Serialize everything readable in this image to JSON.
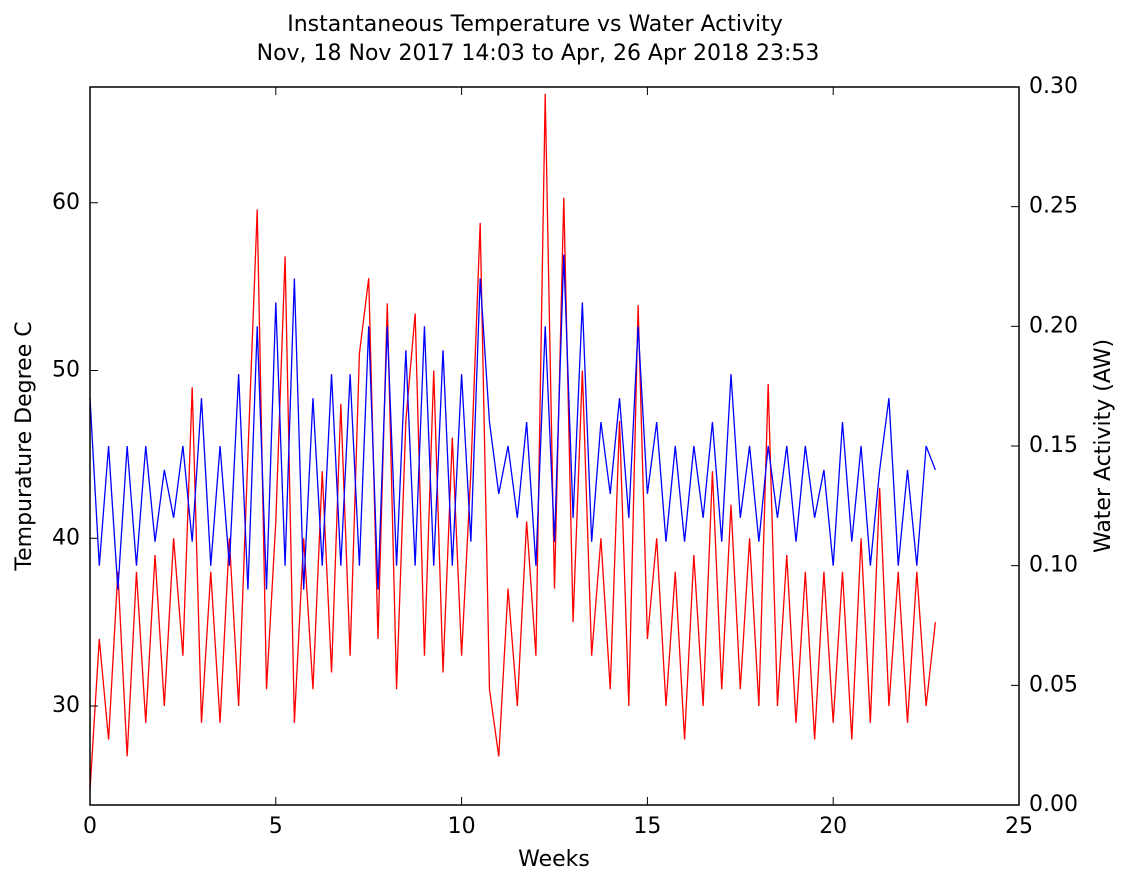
{
  "chart_data": {
    "type": "line",
    "title": "Instantaneous Temperature vs Water Activity",
    "subtitle": "Nov, 18 Nov 2017 14:03 to Apr, 26 Apr 2018 23:53",
    "x_label": "Weeks",
    "y_label": "Tempurature Degree C",
    "y_label_color": "#ff0000",
    "y2_label": "Water Activity (AW)",
    "y2_label_color": "#0000ff",
    "xlim": [
      0,
      25
    ],
    "xticks": [
      0,
      5,
      10,
      15,
      20,
      25
    ],
    "ylim": [
      24.1,
      66.9
    ],
    "yticks": [
      30,
      40,
      50,
      60
    ],
    "y2lim": [
      0,
      0.3
    ],
    "y2ticks": [
      {
        "value": 0,
        "label": "0.00"
      },
      {
        "value": 0.05,
        "label": "0.05"
      },
      {
        "value": 0.1,
        "label": "0.10"
      },
      {
        "value": 0.15,
        "label": "0.15"
      },
      {
        "value": 0.2,
        "label": "0.20"
      },
      {
        "value": 0.25,
        "label": "0.25"
      },
      {
        "value": 0.3,
        "label": "0.30"
      }
    ],
    "x": [
      0,
      0.25,
      0.5,
      0.75,
      1,
      1.25,
      1.5,
      1.75,
      2,
      2.25,
      2.5,
      2.75,
      3,
      3.25,
      3.5,
      3.75,
      4,
      4.25,
      4.5,
      4.75,
      5,
      5.25,
      5.5,
      5.75,
      6,
      6.25,
      6.5,
      6.75,
      7,
      7.25,
      7.5,
      7.75,
      8,
      8.25,
      8.5,
      8.75,
      9,
      9.25,
      9.5,
      9.75,
      10,
      10.25,
      10.5,
      10.75,
      11,
      11.25,
      11.5,
      11.75,
      12,
      12.25,
      12.5,
      12.75,
      13,
      13.25,
      13.5,
      13.75,
      14,
      14.25,
      14.5,
      14.75,
      15,
      15.25,
      15.5,
      15.75,
      16,
      16.25,
      16.5,
      16.75,
      17,
      17.25,
      17.5,
      17.75,
      18,
      18.25,
      18.5,
      18.75,
      19,
      19.25,
      19.5,
      19.75,
      20,
      20.25,
      20.5,
      20.75,
      21,
      21.25,
      21.5,
      21.75,
      22,
      22.25,
      22.5,
      22.75
    ],
    "series": [
      {
        "color": "#ff0000",
        "values": [
          25,
          34,
          28,
          38,
          27,
          38,
          29,
          39,
          30,
          40,
          33,
          49,
          29,
          38,
          29,
          40,
          30,
          45,
          59.6,
          31,
          41,
          56.8,
          29,
          40,
          31,
          44,
          32,
          48,
          33,
          51,
          55.5,
          34,
          54,
          31,
          47,
          53.4,
          33,
          50,
          32,
          46,
          33,
          44,
          58.8,
          31,
          27,
          37,
          30,
          41,
          33,
          66.5,
          37,
          60.3,
          35,
          50,
          33,
          40,
          31,
          47,
          30,
          53.9,
          34,
          40,
          30,
          38,
          28,
          39,
          30,
          44,
          31,
          42,
          31,
          40,
          30,
          49.2,
          30,
          39,
          29,
          38,
          28,
          38,
          29,
          38,
          28,
          40,
          29,
          43,
          30,
          38,
          29,
          38,
          30,
          35
        ]
      },
      {
        "color": "#0000ff",
        "axis": "y2",
        "values": [
          0.17,
          0.1,
          0.15,
          0.09,
          0.15,
          0.1,
          0.15,
          0.11,
          0.14,
          0.12,
          0.15,
          0.11,
          0.17,
          0.1,
          0.15,
          0.1,
          0.18,
          0.09,
          0.2,
          0.09,
          0.21,
          0.1,
          0.22,
          0.09,
          0.17,
          0.1,
          0.18,
          0.1,
          0.18,
          0.1,
          0.2,
          0.09,
          0.2,
          0.1,
          0.19,
          0.1,
          0.2,
          0.1,
          0.19,
          0.1,
          0.18,
          0.11,
          0.22,
          0.16,
          0.13,
          0.15,
          0.12,
          0.16,
          0.1,
          0.2,
          0.11,
          0.23,
          0.12,
          0.21,
          0.11,
          0.16,
          0.13,
          0.17,
          0.12,
          0.2,
          0.13,
          0.16,
          0.11,
          0.15,
          0.11,
          0.15,
          0.12,
          0.16,
          0.11,
          0.18,
          0.12,
          0.15,
          0.11,
          0.15,
          0.12,
          0.15,
          0.11,
          0.15,
          0.12,
          0.14,
          0.1,
          0.16,
          0.11,
          0.15,
          0.1,
          0.14,
          0.17,
          0.1,
          0.14,
          0.1,
          0.15,
          0.14
        ]
      }
    ]
  }
}
